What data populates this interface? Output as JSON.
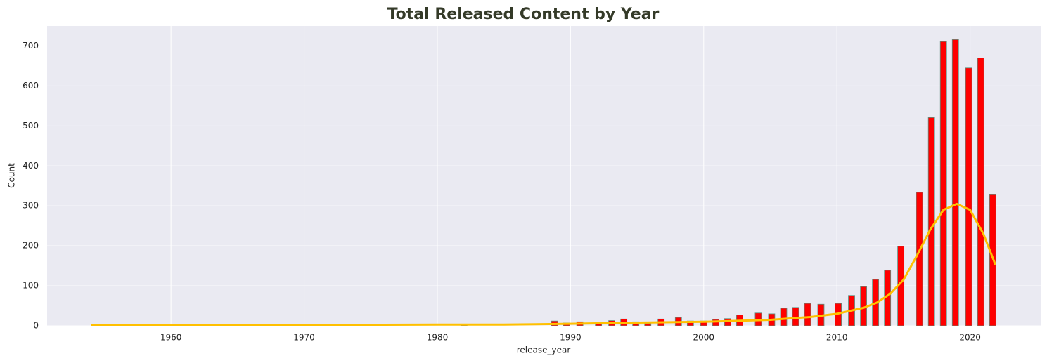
{
  "chart_data": {
    "type": "histogram",
    "title": "Total Released Content by Year",
    "xlabel": "release_year",
    "ylabel": "Count",
    "x": [
      1982.0,
      1988.8,
      1989.7,
      1990.7,
      1992.1,
      1993.1,
      1994.0,
      1994.9,
      1995.8,
      1996.8,
      1998.1,
      1999.0,
      2000.0,
      2000.9,
      2001.8,
      2002.7,
      2004.1,
      2005.1,
      2006.0,
      2006.9,
      2007.8,
      2008.8,
      2010.1,
      2011.1,
      2012.0,
      2012.9,
      2013.8,
      2014.8,
      2016.2,
      2017.1,
      2018.0,
      2018.9,
      2019.9,
      2020.8,
      2021.7
    ],
    "values": [
      4,
      12,
      7,
      10,
      5,
      13,
      17,
      10,
      6,
      17,
      21,
      12,
      12,
      16,
      18,
      27,
      32,
      30,
      44,
      46,
      56,
      54,
      56,
      76,
      98,
      116,
      139,
      199,
      334,
      521,
      711,
      716,
      645,
      670,
      328
    ],
    "color": "#ff0000",
    "edgecolor": "#5f8f7f",
    "line": {
      "x": [
        1954,
        1960,
        1970,
        1980,
        1985,
        1990,
        1995,
        2000,
        2005,
        2008,
        2010,
        2012,
        2013,
        2014,
        2015,
        2016,
        2017,
        2018,
        2019,
        2020,
        2021,
        2021.9
      ],
      "values": [
        1,
        1,
        2,
        3,
        3,
        5,
        8,
        10,
        15,
        22,
        30,
        45,
        58,
        80,
        115,
        175,
        240,
        290,
        305,
        290,
        230,
        153
      ],
      "color": "#ffc000"
    },
    "xlim": [
      1950.7,
      2025.3
    ],
    "xticks": [
      1960,
      1970,
      1980,
      1990,
      2000,
      2010,
      2020
    ],
    "ylim": [
      0,
      750
    ],
    "yticks": [
      0,
      100,
      200,
      300,
      400,
      500,
      600,
      700
    ],
    "grid": true
  }
}
